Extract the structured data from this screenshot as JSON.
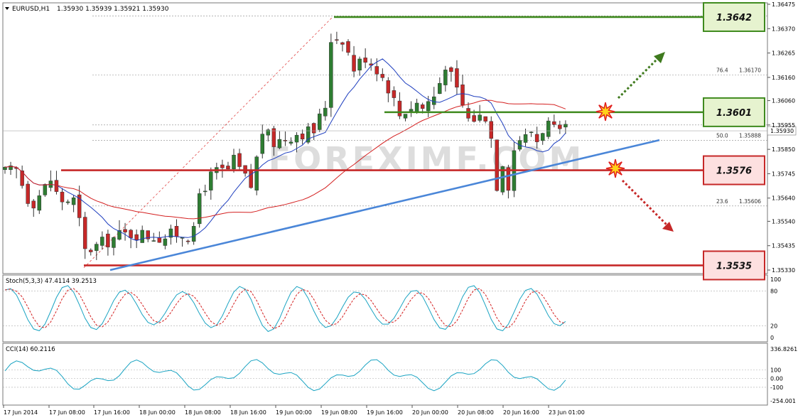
{
  "header": {
    "symbol_text": "EURUSD,H1",
    "ohlc_text": "1.35930 1.35939 1.35921 1.35930"
  },
  "watermark": "FOREXIMF.COM",
  "colors": {
    "bull": "#2e7d32",
    "bear": "#c62828",
    "support": "#c62828",
    "resistance": "#3f8a1e",
    "trendline": "#4a86d8",
    "ma_fast": "#1f3fbf",
    "ma_slow": "#d42020",
    "stoch_main": "#19a3c2",
    "stoch_signal": "#d42020",
    "cci": "#19a3c2",
    "grid": "#888888"
  },
  "chart_data": [
    {
      "type": "candlestick",
      "name": "price",
      "y_ticks": [
        "1.36475",
        "1.36370",
        "1.36265",
        "1.36160",
        "1.36060",
        "1.35955",
        "1.35850",
        "1.35745",
        "1.35640",
        "1.35540",
        "1.35435",
        "1.35330"
      ],
      "y_tick_values": [
        1.36475,
        1.3637,
        1.36265,
        1.3616,
        1.3606,
        1.35955,
        1.3585,
        1.35745,
        1.3564,
        1.3554,
        1.35435,
        1.3533
      ],
      "ylim": [
        1.353,
        1.3648
      ],
      "x_ticks": [
        "17 Jun 2014",
        "17 Jun 08:00",
        "17 Jun 16:00",
        "18 Jun 00:00",
        "18 Jun 08:00",
        "18 Jun 16:00",
        "19 Jun 00:00",
        "19 Jun 08:00",
        "19 Jun 16:00",
        "20 Jun 00:00",
        "20 Jun 08:00",
        "20 Jun 16:00",
        "23 Jun 01:00"
      ],
      "current_price": "1.35930",
      "levels": [
        {
          "label": "1.3642",
          "value": 1.3642,
          "kind": "resistance"
        },
        {
          "label": "1.3601",
          "value": 1.3601,
          "kind": "resistance"
        },
        {
          "label": "1.3576",
          "value": 1.3576,
          "kind": "support"
        },
        {
          "label": "1.3535",
          "value": 1.3535,
          "kind": "support"
        }
      ],
      "fibonacci": [
        {
          "ratio": "76.4",
          "price": "1.36170",
          "value": 1.3617
        },
        {
          "ratio": "50.0",
          "price": "1.35888",
          "value": 1.35888
        },
        {
          "ratio": "23.6",
          "price": "1.35606",
          "value": 1.35606
        }
      ]
    },
    {
      "type": "line",
      "name": "Stoch(5,3,3)",
      "label": "Stoch(5,3,3) 47.4114 39.2513",
      "ylim": [
        0,
        100
      ],
      "y_ticks": [
        "100",
        "80",
        "20",
        "0"
      ],
      "y_tick_values": [
        100,
        80,
        20,
        0
      ]
    },
    {
      "type": "line",
      "name": "CCI(14)",
      "label": "CCI(14) 60.2116",
      "ylim": [
        -254.001,
        336.8261
      ],
      "y_ticks": [
        "336.8261",
        "100",
        "0.00",
        "-100",
        "-254.001"
      ],
      "y_tick_values": [
        336.8261,
        100,
        0,
        -100,
        -254.001
      ]
    }
  ]
}
